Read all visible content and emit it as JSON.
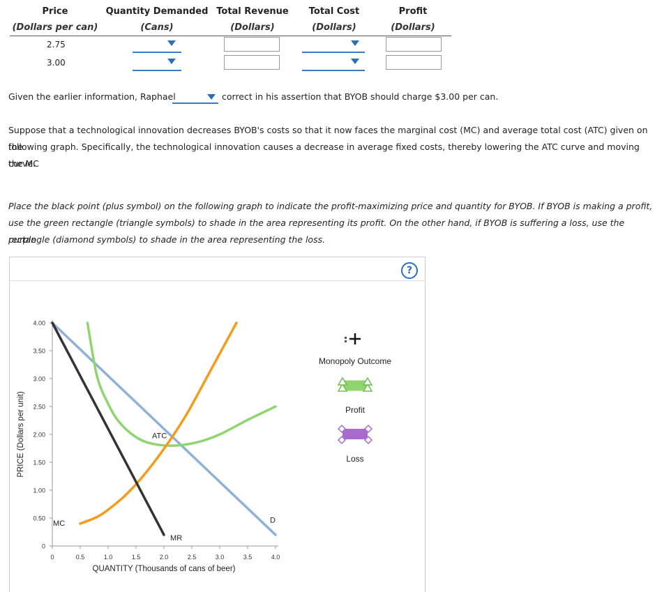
{
  "table": {
    "headers": [
      {
        "title": "Price",
        "sub": "(Dollars per can)"
      },
      {
        "title": "Quantity Demanded",
        "sub": "(Cans)"
      },
      {
        "title": "Total Revenue",
        "sub": "(Dollars)"
      },
      {
        "title": "Total Cost",
        "sub": "(Dollars)"
      },
      {
        "title": "Profit",
        "sub": "(Dollars)"
      }
    ],
    "rows": [
      {
        "price": "2.75"
      },
      {
        "price": "3.00"
      }
    ]
  },
  "sentence": {
    "before": "Given the earlier information, Raphael",
    "after": "correct in his assertion that BYOB should charge $3.00 per can."
  },
  "paragraph1": {
    "line1": "Suppose that a technological innovation decreases BYOB's costs so that it now faces the marginal cost (MC) and average total cost (ATC) given on the",
    "line2": "following graph. Specifically, the technological innovation causes a decrease in average fixed costs, thereby lowering the ATC curve and moving the MC",
    "line3": "curve."
  },
  "paragraph2": {
    "line1": "Place the black point (plus symbol) on the following graph to indicate the profit-maximizing price and quantity for BYOB. If BYOB is making a profit,",
    "line2": "use the green rectangle (triangle symbols) to shade in the area representing its profit. On the other hand, if BYOB is suffering a loss, use the purple",
    "line3": "rectangle (diamond symbols) to shade in the area representing the loss."
  },
  "help_label": "?",
  "legend": {
    "monopoly": "Monopoly Outcome",
    "profit": "Profit",
    "loss": "Loss"
  },
  "colors": {
    "demand": "#8fb1d6",
    "mr": "#333333",
    "atc": "#8fd46e",
    "mc": "#f39c1c",
    "profit": "#8fd46e",
    "loss": "#a96ad0",
    "dropdown": "#2a6fb8"
  },
  "chart_data": {
    "type": "line",
    "xlabel": "QUANTITY (Thousands of cans of beer)",
    "ylabel": "PRICE (Dollars per unit)",
    "xlim": [
      0,
      4.0
    ],
    "ylim": [
      0,
      4.0
    ],
    "x_ticks": [
      "0",
      "0.5",
      "1.0",
      "1.5",
      "2.0",
      "2.5",
      "3.0",
      "3.5",
      "4.0"
    ],
    "y_ticks": [
      "0",
      "0.50",
      "1.00",
      "1.50",
      "2.00",
      "2.50",
      "3.00",
      "3.50",
      "4.00"
    ],
    "series": [
      {
        "name": "D",
        "x": [
          0,
          4.0
        ],
        "y": [
          4.0,
          0.2
        ]
      },
      {
        "name": "MR",
        "x": [
          0,
          2.0
        ],
        "y": [
          4.0,
          0.2
        ]
      },
      {
        "name": "ATC",
        "x": [
          0.63,
          0.8,
          1.0,
          1.2,
          1.5,
          1.8,
          2.2,
          2.6,
          3.0,
          3.5,
          4.0
        ],
        "y": [
          4.0,
          3.05,
          2.55,
          2.22,
          1.95,
          1.83,
          1.8,
          1.86,
          2.0,
          2.26,
          2.5
        ]
      },
      {
        "name": "MC",
        "x": [
          0.5,
          0.8,
          1.0,
          1.3,
          1.6,
          2.0,
          2.4,
          2.8,
          3.3
        ],
        "y": [
          0.4,
          0.52,
          0.65,
          0.9,
          1.22,
          1.74,
          2.35,
          3.08,
          4.0
        ]
      }
    ],
    "curve_labels": {
      "D": "D",
      "MR": "MR",
      "ATC": "ATC",
      "MC": "MC"
    }
  }
}
